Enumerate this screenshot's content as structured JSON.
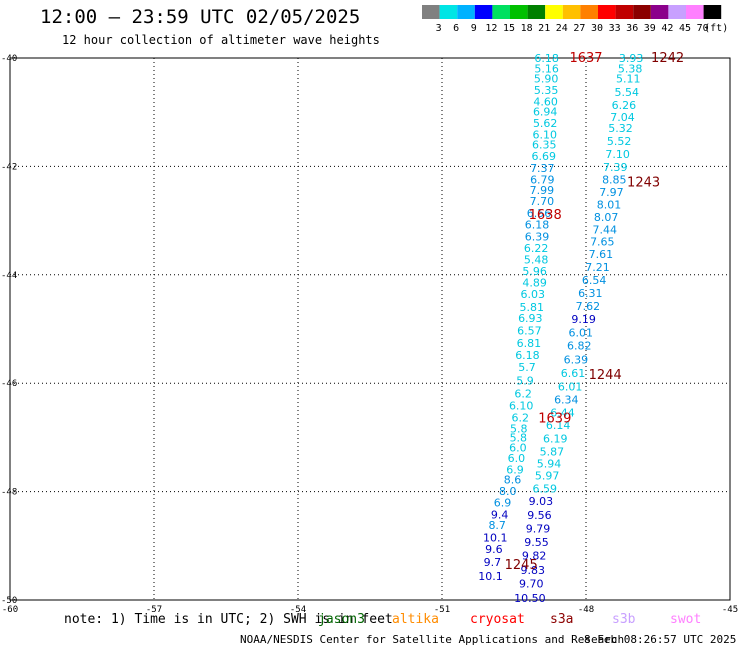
{
  "header": {
    "title": "12:00 — 23:59 UTC 02/05/2025",
    "subtitle": "12 hour collection of altimeter wave heights"
  },
  "color_scale": {
    "labels": [
      "3",
      "6",
      "9",
      "12",
      "15",
      "18",
      "21",
      "24",
      "27",
      "30",
      "33",
      "36",
      "39",
      "42",
      "45",
      "70",
      "(ft)"
    ],
    "colors": [
      "#808080",
      "#00e5e5",
      "#00b2ff",
      "#0000ff",
      "#00e060",
      "#00c000",
      "#008000",
      "#ffff00",
      "#ffc000",
      "#ff8000",
      "#ff0000",
      "#c00000",
      "#8b0000",
      "#8b008b",
      "#c8a0ff",
      "#ff80ff",
      "#000000"
    ]
  },
  "note": {
    "prefix": "note: 1) Time is in UTC; 2) SWH is in feet",
    "satellites": [
      {
        "name": "jason3",
        "color": "#006400"
      },
      {
        "name": "altika",
        "color": "#ff8c00"
      },
      {
        "name": "cryosat",
        "color": "#ff0000"
      },
      {
        "name": "s3a",
        "color": "#8b0000"
      },
      {
        "name": "s3b",
        "color": "#c8a0ff"
      },
      {
        "name": "swot",
        "color": "#ff80ff"
      }
    ]
  },
  "footer": {
    "source": "NOAA/NESDIS Center for Satellite Applications and Research",
    "generated": "8 Feb 08:26:57 UTC 2025"
  },
  "chart_data": {
    "type": "scatter",
    "x_range": [
      -60,
      -45
    ],
    "y_range": [
      -50,
      -40
    ],
    "x_ticks": [
      -60,
      -57,
      -54,
      -51,
      -48,
      -45
    ],
    "y_ticks": [
      -40,
      -42,
      -44,
      -46,
      -48,
      -50
    ],
    "grid": true,
    "point_colors": {
      "cyan": "#00c8e0",
      "blue": "#0090e0",
      "navy": "#0000c0",
      "label": "#c00000",
      "label_dark": "#800000"
    },
    "tracks": [
      {
        "name": "track_1637",
        "points": [
          {
            "lon": -48.82,
            "lat": -40.0,
            "v": "6.18",
            "c": "cyan"
          },
          {
            "lon": -48.82,
            "lat": -40.19,
            "v": "5.16",
            "c": "cyan"
          },
          {
            "lon": -48.83,
            "lat": -40.38,
            "v": "5.90",
            "c": "cyan"
          },
          {
            "lon": -48.83,
            "lat": -40.59,
            "v": "5.35",
            "c": "cyan"
          },
          {
            "lon": -48.84,
            "lat": -40.8,
            "v": "4.60",
            "c": "cyan"
          },
          {
            "lon": -48.85,
            "lat": -40.99,
            "v": "6.94",
            "c": "cyan"
          },
          {
            "lon": -48.85,
            "lat": -41.2,
            "v": "5.62",
            "c": "cyan"
          },
          {
            "lon": -48.86,
            "lat": -41.41,
            "v": "6.10",
            "c": "cyan"
          },
          {
            "lon": -48.87,
            "lat": -41.6,
            "v": "6.35",
            "c": "cyan"
          },
          {
            "lon": -48.88,
            "lat": -41.81,
            "v": "6.69",
            "c": "cyan"
          },
          {
            "lon": -48.91,
            "lat": -42.03,
            "v": "7.37",
            "c": "blue"
          },
          {
            "lon": -48.91,
            "lat": -42.24,
            "v": "6.79",
            "c": "blue"
          },
          {
            "lon": -48.92,
            "lat": -42.44,
            "v": "7.99",
            "c": "blue"
          },
          {
            "lon": -48.92,
            "lat": -42.64,
            "v": "7.70",
            "c": "blue"
          },
          {
            "lon": -48.98,
            "lat": -42.86,
            "v": "6.56",
            "c": "blue"
          },
          {
            "lon": -49.02,
            "lat": -43.07,
            "v": "6.18",
            "c": "blue"
          },
          {
            "lon": -49.02,
            "lat": -43.29,
            "v": "6.39",
            "c": "blue"
          },
          {
            "lon": -49.04,
            "lat": -43.51,
            "v": "6.22",
            "c": "cyan"
          },
          {
            "lon": -49.04,
            "lat": -43.72,
            "v": "5.48",
            "c": "cyan"
          },
          {
            "lon": -49.07,
            "lat": -43.93,
            "v": "5.96",
            "c": "cyan"
          },
          {
            "lon": -49.07,
            "lat": -44.14,
            "v": "4.89",
            "c": "cyan"
          },
          {
            "lon": -49.11,
            "lat": -44.35,
            "v": "6.03",
            "c": "cyan"
          },
          {
            "lon": -49.13,
            "lat": -44.59,
            "v": "5.81",
            "c": "cyan"
          },
          {
            "lon": -49.16,
            "lat": -44.8,
            "v": "6.93",
            "c": "cyan"
          },
          {
            "lon": -49.18,
            "lat": -45.03,
            "v": "6.57",
            "c": "cyan"
          },
          {
            "lon": -49.19,
            "lat": -45.26,
            "v": "6.81",
            "c": "cyan"
          },
          {
            "lon": -49.22,
            "lat": -45.48,
            "v": "6.18",
            "c": "cyan"
          },
          {
            "lon": -49.23,
            "lat": -45.7,
            "v": "5.7",
            "c": "cyan"
          },
          {
            "lon": -49.27,
            "lat": -45.95,
            "v": "5.9",
            "c": "cyan"
          },
          {
            "lon": -49.31,
            "lat": -46.19,
            "v": "6.2",
            "c": "cyan"
          },
          {
            "lon": -49.35,
            "lat": -46.41,
            "v": "6.10",
            "c": "cyan"
          },
          {
            "lon": -49.37,
            "lat": -46.63,
            "v": "6.2",
            "c": "cyan"
          },
          {
            "lon": -49.4,
            "lat": -46.84,
            "v": "5.8",
            "c": "cyan"
          },
          {
            "lon": -49.41,
            "lat": -47.0,
            "v": "5.8",
            "c": "cyan"
          },
          {
            "lon": -49.42,
            "lat": -47.19,
            "v": "6.0",
            "c": "cyan"
          },
          {
            "lon": -49.45,
            "lat": -47.38,
            "v": "6.0",
            "c": "cyan"
          },
          {
            "lon": -49.48,
            "lat": -47.59,
            "v": "6.9",
            "c": "cyan"
          },
          {
            "lon": -49.53,
            "lat": -47.78,
            "v": "8.6",
            "c": "blue"
          },
          {
            "lon": -49.63,
            "lat": -47.99,
            "v": "8.0",
            "c": "blue"
          },
          {
            "lon": -49.74,
            "lat": -48.2,
            "v": "6.9",
            "c": "blue"
          },
          {
            "lon": -49.8,
            "lat": -48.42,
            "v": "9.4",
            "c": "navy"
          },
          {
            "lon": -49.85,
            "lat": -48.62,
            "v": "8.7",
            "c": "blue"
          },
          {
            "lon": -49.89,
            "lat": -48.85,
            "v": "10.1",
            "c": "navy"
          },
          {
            "lon": -49.92,
            "lat": -49.06,
            "v": "9.6",
            "c": "navy"
          },
          {
            "lon": -49.95,
            "lat": -49.3,
            "v": "9.7",
            "c": "navy"
          },
          {
            "lon": -49.99,
            "lat": -49.56,
            "v": "10.1",
            "c": "navy"
          }
        ],
        "label": {
          "text": "1637",
          "lon": -48.0,
          "lat": -40.0,
          "c": "label"
        }
      },
      {
        "name": "track_1242",
        "points": [
          {
            "lon": -47.06,
            "lat": -40.0,
            "v": "3.93",
            "c": "cyan"
          },
          {
            "lon": -47.08,
            "lat": -40.19,
            "v": "5.38",
            "c": "cyan"
          },
          {
            "lon": -47.12,
            "lat": -40.38,
            "v": "5.11",
            "c": "cyan"
          },
          {
            "lon": -47.15,
            "lat": -40.63,
            "v": "5.54",
            "c": "cyan"
          },
          {
            "lon": -47.21,
            "lat": -40.87,
            "v": "6.26",
            "c": "cyan"
          },
          {
            "lon": -47.24,
            "lat": -41.09,
            "v": "7.04",
            "c": "cyan"
          },
          {
            "lon": -47.28,
            "lat": -41.29,
            "v": "5.32",
            "c": "cyan"
          },
          {
            "lon": -47.31,
            "lat": -41.53,
            "v": "5.52",
            "c": "cyan"
          },
          {
            "lon": -47.34,
            "lat": -41.77,
            "v": "7.10",
            "c": "cyan"
          },
          {
            "lon": -47.39,
            "lat": -42.01,
            "v": "7.39",
            "c": "cyan"
          },
          {
            "lon": -47.41,
            "lat": -42.24,
            "v": "8.85",
            "c": "blue"
          },
          {
            "lon": -47.47,
            "lat": -42.47,
            "v": "7.97",
            "c": "blue"
          },
          {
            "lon": -47.52,
            "lat": -42.7,
            "v": "8.01",
            "c": "blue"
          },
          {
            "lon": -47.58,
            "lat": -42.93,
            "v": "8.07",
            "c": "blue"
          },
          {
            "lon": -47.61,
            "lat": -43.16,
            "v": "7.44",
            "c": "blue"
          },
          {
            "lon": -47.66,
            "lat": -43.39,
            "v": "7.65",
            "c": "blue"
          },
          {
            "lon": -47.69,
            "lat": -43.62,
            "v": "7.61",
            "c": "blue"
          },
          {
            "lon": -47.76,
            "lat": -43.86,
            "v": "7.21",
            "c": "blue"
          },
          {
            "lon": -47.83,
            "lat": -44.1,
            "v": "6.54",
            "c": "blue"
          },
          {
            "lon": -47.91,
            "lat": -44.34,
            "v": "6.31",
            "c": "blue"
          },
          {
            "lon": -47.96,
            "lat": -44.58,
            "v": "7.62",
            "c": "blue"
          },
          {
            "lon": -48.05,
            "lat": -44.82,
            "v": "9.19",
            "c": "navy"
          },
          {
            "lon": -48.11,
            "lat": -45.06,
            "v": "6.01",
            "c": "blue"
          },
          {
            "lon": -48.14,
            "lat": -45.3,
            "v": "6.82",
            "c": "blue"
          },
          {
            "lon": -48.21,
            "lat": -45.56,
            "v": "6.39",
            "c": "blue"
          },
          {
            "lon": -48.27,
            "lat": -45.81,
            "v": "6.61",
            "c": "cyan"
          },
          {
            "lon": -48.33,
            "lat": -46.06,
            "v": "6.01",
            "c": "cyan"
          },
          {
            "lon": -48.41,
            "lat": -46.3,
            "v": "6.34",
            "c": "blue"
          },
          {
            "lon": -48.49,
            "lat": -46.54,
            "v": "6.44",
            "c": "cyan"
          },
          {
            "lon": -48.58,
            "lat": -46.77,
            "v": "6.14",
            "c": "cyan"
          },
          {
            "lon": -48.64,
            "lat": -47.02,
            "v": "6.19",
            "c": "cyan"
          },
          {
            "lon": -48.71,
            "lat": -47.26,
            "v": "5.87",
            "c": "cyan"
          },
          {
            "lon": -48.77,
            "lat": -47.48,
            "v": "5.94",
            "c": "cyan"
          },
          {
            "lon": -48.81,
            "lat": -47.7,
            "v": "5.97",
            "c": "cyan"
          },
          {
            "lon": -48.86,
            "lat": -47.94,
            "v": "6.59",
            "c": "cyan"
          },
          {
            "lon": -48.94,
            "lat": -48.17,
            "v": "9.03",
            "c": "navy"
          },
          {
            "lon": -48.97,
            "lat": -48.43,
            "v": "9.56",
            "c": "navy"
          },
          {
            "lon": -49.0,
            "lat": -48.68,
            "v": "9.79",
            "c": "navy"
          },
          {
            "lon": -49.03,
            "lat": -48.93,
            "v": "9.55",
            "c": "navy"
          },
          {
            "lon": -49.08,
            "lat": -49.18,
            "v": "9.82",
            "c": "navy"
          },
          {
            "lon": -49.11,
            "lat": -49.45,
            "v": "9.83",
            "c": "navy"
          },
          {
            "lon": -49.14,
            "lat": -49.7,
            "v": "9.70",
            "c": "navy"
          },
          {
            "lon": -49.17,
            "lat": -49.96,
            "v": "10.50",
            "c": "navy"
          }
        ],
        "label": {
          "text": "1242",
          "lon": -46.3,
          "lat": -40.0,
          "c": "label_dark"
        }
      }
    ],
    "time_labels": [
      {
        "text": "1243",
        "lon": -46.8,
        "lat": -42.3,
        "c": "label_dark"
      },
      {
        "text": "1638",
        "lon": -48.85,
        "lat": -42.9,
        "c": "label"
      },
      {
        "text": "1244",
        "lon": -47.6,
        "lat": -45.85,
        "c": "label_dark"
      },
      {
        "text": "1639",
        "lon": -48.65,
        "lat": -46.65,
        "c": "label"
      },
      {
        "text": "1245",
        "lon": -49.35,
        "lat": -49.35,
        "c": "label_dark"
      }
    ]
  }
}
